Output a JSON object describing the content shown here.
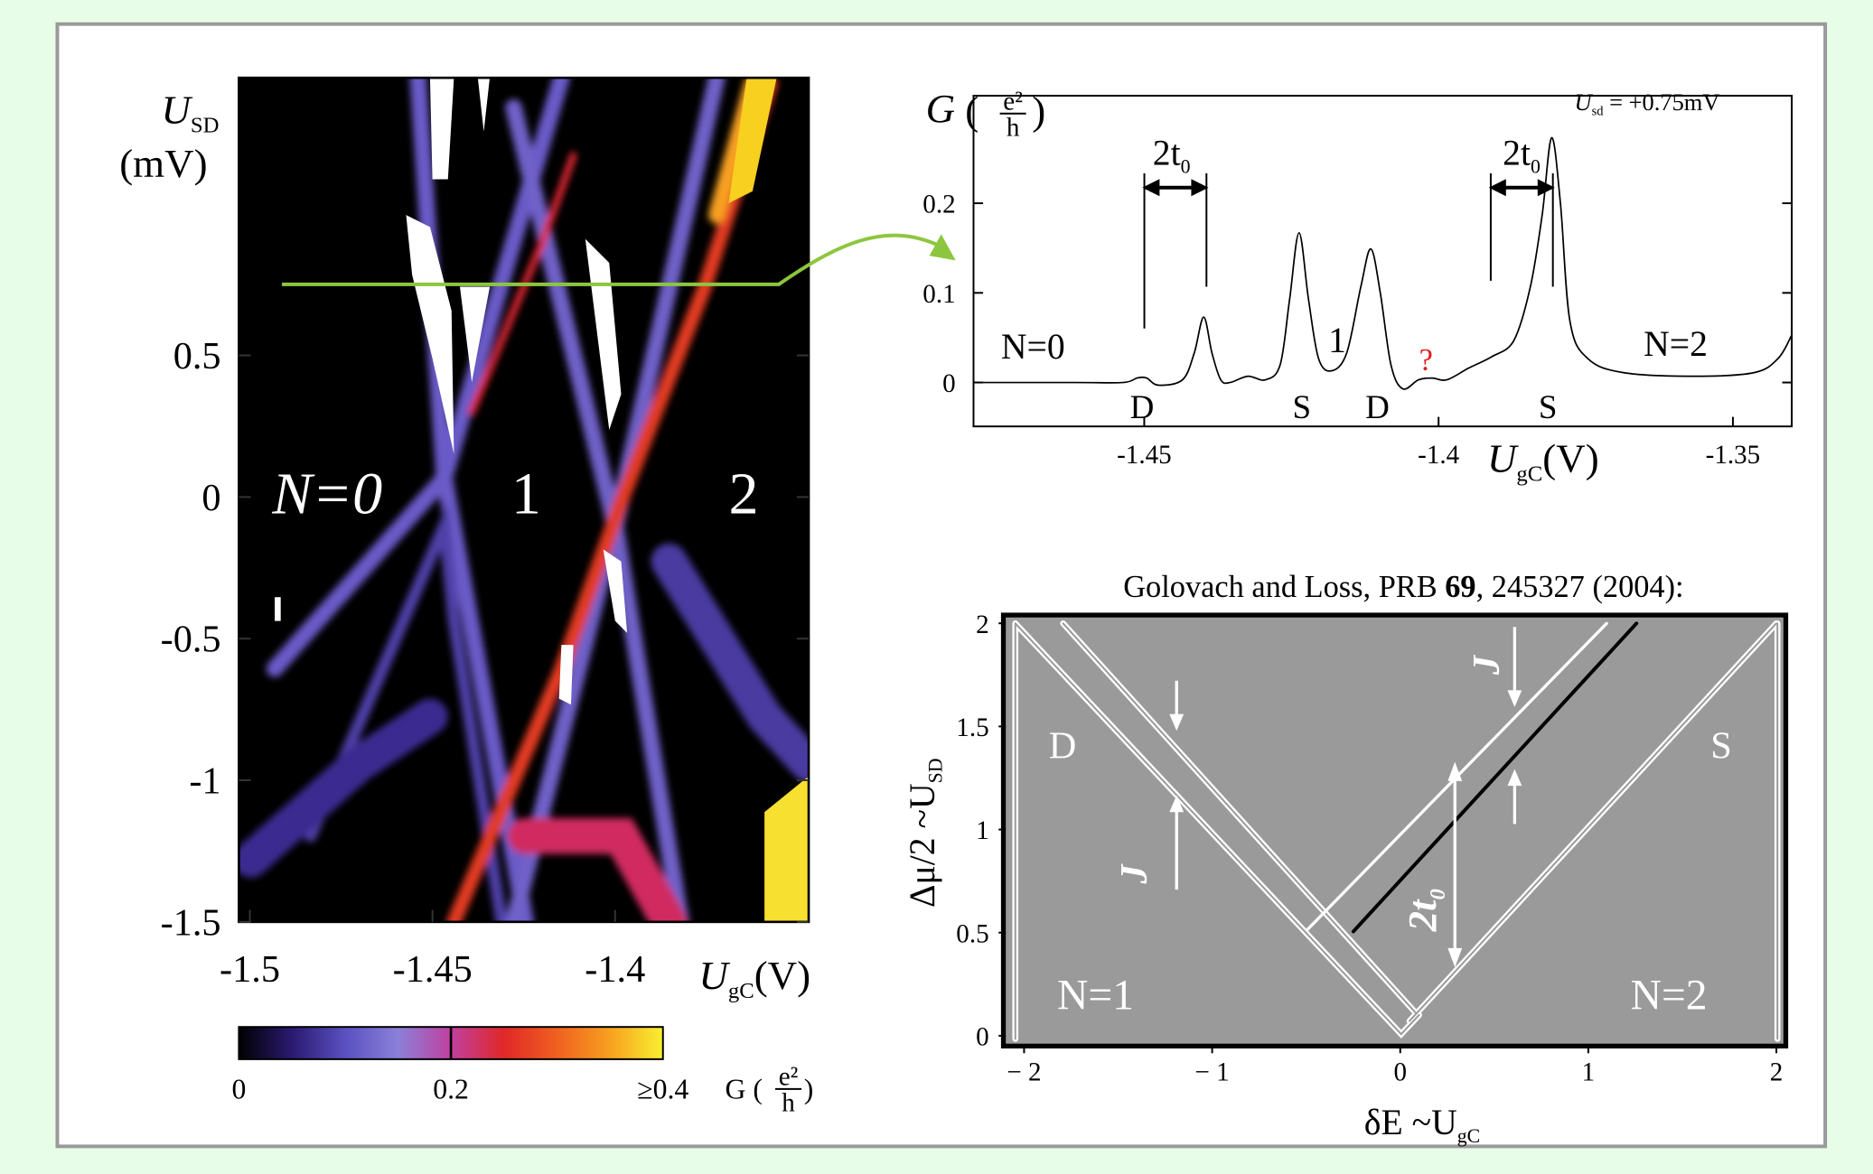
{
  "chart_data": [
    {
      "type": "heatmap",
      "y_label": {
        "symbol": "U",
        "sub": "SD",
        "unit": "(mV)"
      },
      "x_label": {
        "symbol": "U",
        "sub": "gC",
        "unit": "(V)"
      },
      "xlim": [
        -1.503,
        -1.347
      ],
      "xticks": [
        -1.5,
        -1.45,
        -1.4
      ],
      "ylim": [
        -1.5,
        1.48
      ],
      "yticks": [
        0.5,
        0,
        -0.5,
        -1,
        -1.5
      ],
      "annotations": [
        "N=0",
        "1",
        "2"
      ],
      "colorbar": {
        "lim": [
          0,
          0.4
        ],
        "ticks": [
          0,
          0.2,
          {
            "value": 0.4,
            "label": "≥0.4"
          }
        ],
        "label": "G (",
        "fraction": {
          "num": "e²",
          "den": "h"
        },
        "close": ")",
        "colors": [
          "#000000",
          "#2a1a70",
          "#5a50c0",
          "#8a80d8",
          "#c040a0",
          "#e02828",
          "#f06020",
          "#f8a020",
          "#f8f030"
        ]
      }
    },
    {
      "type": "line",
      "y_label": "G",
      "y_unit": {
        "open": "(",
        "num": "e²",
        "den": "h",
        "close": ")"
      },
      "x_label": {
        "symbol": "U",
        "sub": "gC",
        "unit": "(V)"
      },
      "xlim": [
        -1.479,
        -1.34
      ],
      "xticks": [
        -1.45,
        -1.4,
        -1.35
      ],
      "ylim": [
        -0.049,
        0.32
      ],
      "yticks": [
        0,
        0.1,
        0.2
      ],
      "x": [
        -1.479,
        -1.4617,
        -1.4536,
        -1.4512,
        -1.4496,
        -1.4476,
        -1.4435,
        -1.4415,
        -1.4399,
        -1.4385,
        -1.437,
        -1.4354,
        -1.4324,
        -1.4294,
        -1.4269,
        -1.4253,
        -1.4237,
        -1.4221,
        -1.4204,
        -1.4182,
        -1.4156,
        -1.4132,
        -1.4115,
        -1.4099,
        -1.4081,
        -1.4061,
        -1.4034,
        -1.4011,
        -1.3986,
        -1.3949,
        -1.3909,
        -1.3872,
        -1.3844,
        -1.3824,
        -1.3808,
        -1.3793,
        -1.3777,
        -1.3747,
        -1.3686,
        -1.3565,
        -1.3464,
        -1.3423,
        -1.34
      ],
      "values": [
        0,
        0,
        0,
        0.005,
        0.005,
        -0.003,
        0.003,
        0.033,
        0.073,
        0.033,
        0.003,
        0,
        0.007,
        0.003,
        0.02,
        0.093,
        0.167,
        0.093,
        0.027,
        0.013,
        0.033,
        0.107,
        0.149,
        0.1,
        0.02,
        -0.007,
        0.003,
        0.005,
        0.003,
        0.016,
        0.029,
        0.047,
        0.107,
        0.187,
        0.273,
        0.2,
        0.069,
        0.027,
        0.011,
        0.007,
        0.011,
        0.027,
        0.053
      ],
      "color": "#000000",
      "condition": {
        "symbol": "U",
        "sub": "sd",
        "text": " = +0.75mV"
      },
      "spacing_labels": [
        {
          "text": "2t",
          "sub": "0"
        },
        {
          "text": "2t",
          "sub": "0"
        }
      ],
      "annotations": [
        "N=0",
        "1",
        "?",
        "N=2",
        "D",
        "S",
        "D",
        "S"
      ]
    },
    {
      "type": "diagram",
      "title": [
        "Golovach and Loss, PRB ",
        "69",
        ", 245327 (2004):"
      ],
      "x_label": {
        "text": "δE ~U",
        "sub": "gC"
      },
      "y_label": {
        "text": "Δμ/2 ~U",
        "sub": "SD"
      },
      "xlim": [
        -2.11,
        2.05
      ],
      "xticks": [
        {
          "value": -2,
          "label": "− 2"
        },
        {
          "value": -1,
          "label": "− 1"
        },
        0,
        1,
        2
      ],
      "ylim": [
        -0.05,
        2.04
      ],
      "yticks": [
        0,
        0.5,
        1,
        1.5,
        2
      ],
      "annotations": [
        "D",
        "S",
        "N=1",
        "N=2",
        "J",
        "J"
      ],
      "spacing_label": {
        "text": "2t",
        "sub": "0"
      }
    }
  ]
}
